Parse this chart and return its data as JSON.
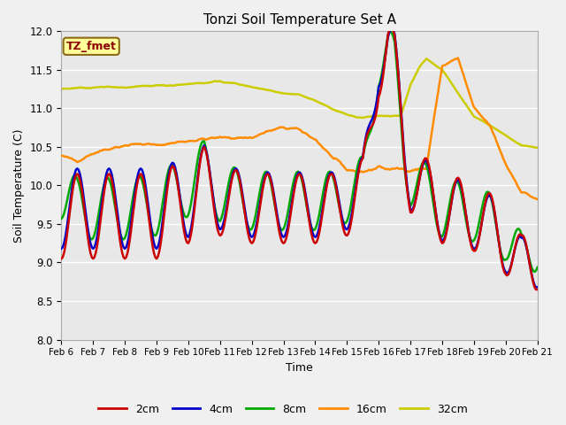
{
  "title": "Tonzi Soil Temperature Set A",
  "xlabel": "Time",
  "ylabel": "Soil Temperature (C)",
  "ylim": [
    8.0,
    12.0
  ],
  "yticks": [
    8.0,
    8.5,
    9.0,
    9.5,
    10.0,
    10.5,
    11.0,
    11.5,
    12.0
  ],
  "xtick_labels": [
    "Feb 6",
    "Feb 7",
    "Feb 8",
    "Feb 9",
    "Feb 10",
    "Feb 11",
    "Feb 12",
    "Feb 13",
    "Feb 14",
    "Feb 15",
    "Feb 16",
    "Feb 17",
    "Feb 18",
    "Feb 19",
    "Feb 20",
    "Feb 21"
  ],
  "annotation": "TZ_fmet",
  "annotation_color": "#8B0000",
  "annotation_bg": "#FFFF99",
  "annotation_edge": "#8B6914",
  "fig_bg_color": "#F0F0F0",
  "ax_bg_color": "#E8E8E8",
  "colors": {
    "2cm": "#CC0000",
    "4cm": "#0000CC",
    "8cm": "#00AA00",
    "16cm": "#FF8C00",
    "32cm": "#CCCC00"
  },
  "legend_labels": [
    "2cm",
    "4cm",
    "8cm",
    "16cm",
    "32cm"
  ]
}
